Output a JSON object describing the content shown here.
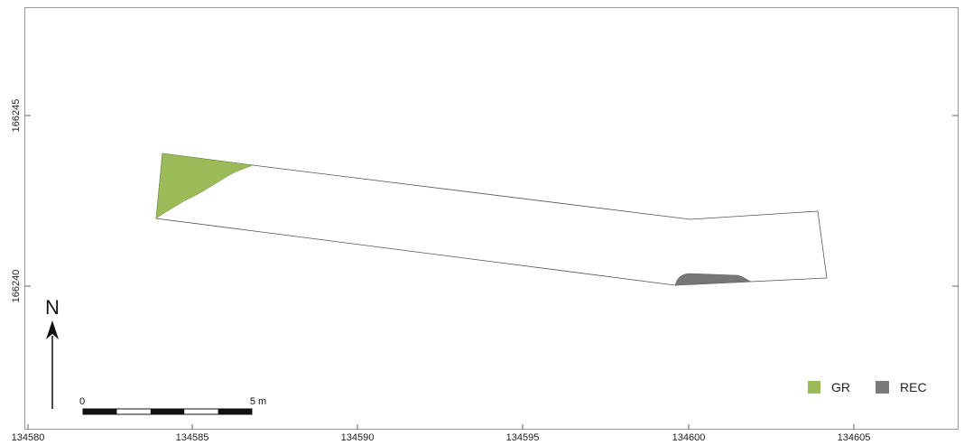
{
  "map": {
    "x_ticks": [
      "134580",
      "134585",
      "134590",
      "134595",
      "134600",
      "134605"
    ],
    "y_ticks": [
      "166245",
      "166240"
    ],
    "north_label": "N",
    "scale": {
      "start_label": "0",
      "end_label": "5 m"
    },
    "legend": [
      {
        "label": "GR",
        "color": "#9bbb59"
      },
      {
        "label": "REC",
        "color": "#7a7a7a"
      }
    ],
    "colors": {
      "gr_fill": "#9bbb59",
      "rec_fill": "#777777",
      "outline": "#555555",
      "frame": "#999999"
    }
  }
}
